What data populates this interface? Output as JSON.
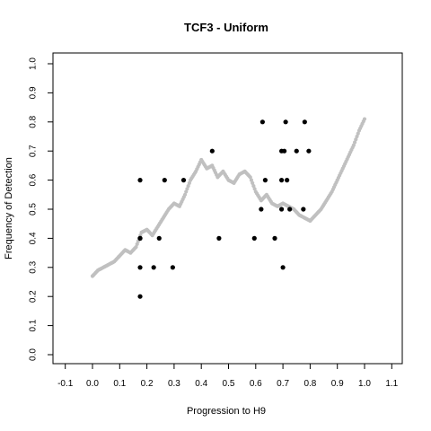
{
  "chart_data": {
    "type": "scatter",
    "title": "TCF3 - Uniform",
    "xlabel": "Progression to H9",
    "ylabel": "Frequency of Detection",
    "xlim": [
      -0.1,
      1.1
    ],
    "ylim": [
      0.0,
      1.0
    ],
    "x_ticks": [
      "-0.1",
      "0.0",
      "0.1",
      "0.2",
      "0.3",
      "0.4",
      "0.5",
      "0.6",
      "0.7",
      "0.8",
      "0.9",
      "1.0",
      "1.1"
    ],
    "y_ticks": [
      "0.0",
      "0.1",
      "0.2",
      "0.3",
      "0.4",
      "0.5",
      "0.6",
      "0.7",
      "0.8",
      "0.9",
      "1.0"
    ],
    "grid": false,
    "legend": "none",
    "colors": {
      "points": "#000000",
      "smoothed": "#c0c0c0",
      "axis": "#000000"
    },
    "series": [
      {
        "style": "points",
        "x": [
          0.175,
          0.175,
          0.175,
          0.175,
          0.175,
          0.225,
          0.245,
          0.265,
          0.295,
          0.335,
          0.44,
          0.465,
          0.595,
          0.62,
          0.625,
          0.635,
          0.67,
          0.695,
          0.695,
          0.695,
          0.7,
          0.705,
          0.71,
          0.715,
          0.725,
          0.75,
          0.775,
          0.78,
          0.795
        ],
        "y": [
          0.6,
          0.4,
          0.4,
          0.3,
          0.2,
          0.3,
          0.4,
          0.6,
          0.3,
          0.6,
          0.7,
          0.4,
          0.4,
          0.5,
          0.8,
          0.6,
          0.4,
          0.5,
          0.6,
          0.7,
          0.3,
          0.7,
          0.8,
          0.6,
          0.5,
          0.7,
          0.5,
          0.8,
          0.7
        ]
      },
      {
        "style": "smoothed",
        "x": [
          0.0,
          0.02,
          0.04,
          0.06,
          0.08,
          0.1,
          0.12,
          0.14,
          0.16,
          0.18,
          0.2,
          0.22,
          0.24,
          0.26,
          0.28,
          0.3,
          0.32,
          0.34,
          0.36,
          0.38,
          0.4,
          0.42,
          0.44,
          0.46,
          0.48,
          0.5,
          0.52,
          0.54,
          0.56,
          0.58,
          0.6,
          0.62,
          0.64,
          0.66,
          0.68,
          0.7,
          0.72,
          0.74,
          0.76,
          0.78,
          0.8,
          0.82,
          0.84,
          0.86,
          0.88,
          0.9,
          0.92,
          0.94,
          0.96,
          0.98,
          1.0
        ],
        "y": [
          0.27,
          0.29,
          0.3,
          0.31,
          0.32,
          0.34,
          0.36,
          0.35,
          0.37,
          0.42,
          0.43,
          0.41,
          0.44,
          0.47,
          0.5,
          0.52,
          0.51,
          0.55,
          0.6,
          0.63,
          0.67,
          0.64,
          0.65,
          0.61,
          0.63,
          0.6,
          0.59,
          0.62,
          0.63,
          0.61,
          0.56,
          0.53,
          0.55,
          0.52,
          0.51,
          0.52,
          0.51,
          0.5,
          0.48,
          0.47,
          0.46,
          0.48,
          0.5,
          0.53,
          0.56,
          0.6,
          0.64,
          0.68,
          0.72,
          0.77,
          0.81
        ]
      }
    ]
  }
}
